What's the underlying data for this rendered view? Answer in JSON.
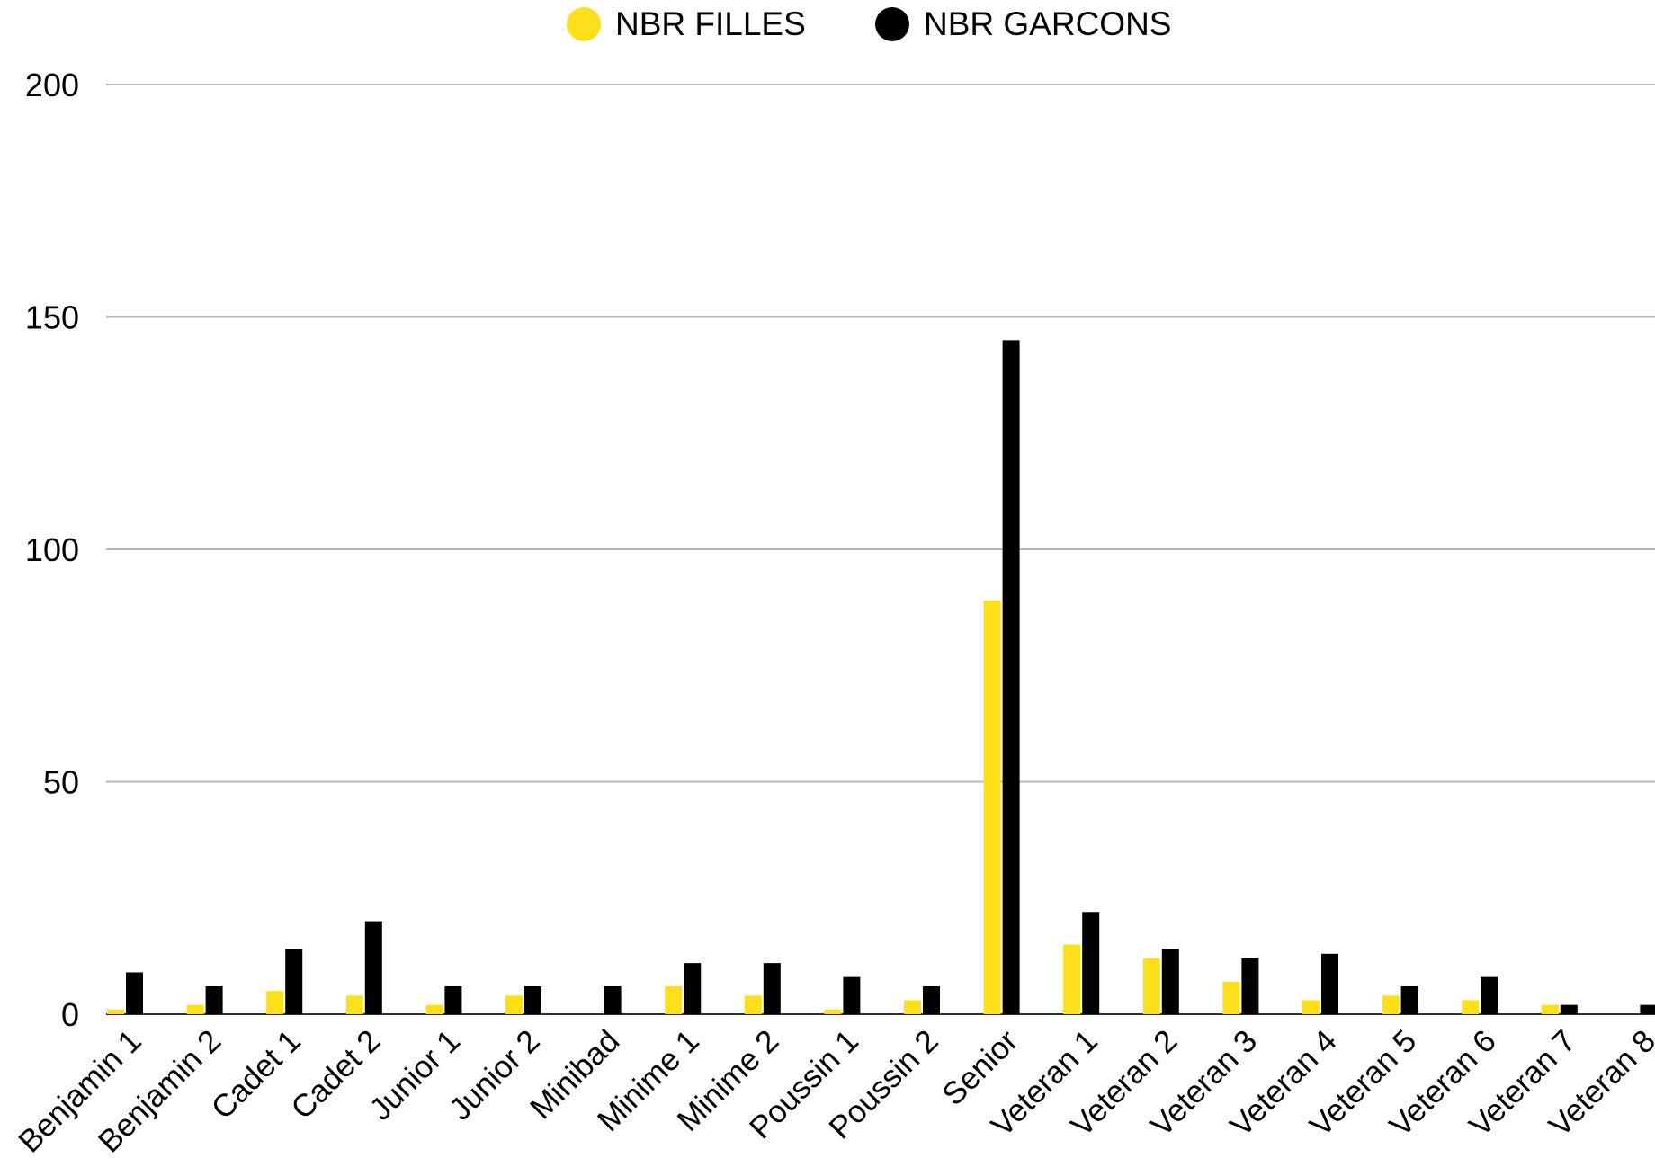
{
  "legend": {
    "filles_label": "NBR FILLES",
    "garcons_label": "NBR GARCONS"
  },
  "colors": {
    "filles": "#fde01a",
    "garcons": "#000000",
    "grid": "#b7b7b7",
    "baseline": "#333333"
  },
  "chart_data": {
    "type": "bar",
    "title": "",
    "xlabel": "",
    "ylabel": "",
    "ylim": [
      0,
      200
    ],
    "yticks": [
      0,
      50,
      100,
      150,
      200
    ],
    "grid": true,
    "legend_position": "top",
    "categories": [
      "Benjamin 1",
      "Benjamin 2",
      "Cadet 1",
      "Cadet 2",
      "Junior 1",
      "Junior 2",
      "Minibad",
      "Minime 1",
      "Minime 2",
      "Poussin 1",
      "Poussin 2",
      "Senior",
      "Veteran 1",
      "Veteran 2",
      "Veteran 3",
      "Veteran 4",
      "Veteran 5",
      "Veteran 6",
      "Veteran 7",
      "Veteran 8"
    ],
    "series": [
      {
        "name": "NBR FILLES",
        "values": [
          1,
          2,
          5,
          4,
          2,
          4,
          0,
          6,
          4,
          1,
          3,
          89,
          15,
          12,
          7,
          3,
          4,
          3,
          2,
          0
        ]
      },
      {
        "name": "NBR GARCONS",
        "values": [
          9,
          6,
          14,
          20,
          6,
          6,
          6,
          11,
          11,
          8,
          6,
          145,
          22,
          14,
          12,
          13,
          6,
          8,
          2,
          2
        ]
      }
    ]
  }
}
